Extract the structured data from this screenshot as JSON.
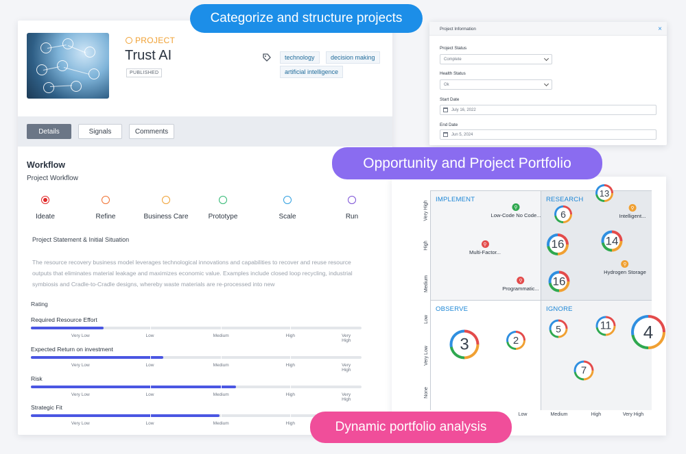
{
  "callouts": {
    "top": "Categorize and structure projects",
    "middle": "Opportunity and Project Portfolio",
    "bottom": "Dynamic portfolio analysis"
  },
  "project": {
    "kind": "PROJECT",
    "title": "Trust AI",
    "status_badge": "PUBLISHED",
    "tags": [
      "technology",
      "decision making",
      "artificial intelligence"
    ]
  },
  "tabs": [
    "Details",
    "Signals",
    "Comments"
  ],
  "workflow": {
    "title": "Workflow",
    "subtitle": "Project Workflow",
    "stages": [
      {
        "label": "Ideate",
        "color": "#e02828",
        "current": true
      },
      {
        "label": "Refine",
        "color": "#f07030",
        "current": false
      },
      {
        "label": "Business Care",
        "color": "#f0a032",
        "current": false
      },
      {
        "label": "Prototype",
        "color": "#2fb872",
        "current": false
      },
      {
        "label": "Scale",
        "color": "#2f9fe0",
        "current": false
      },
      {
        "label": "Run",
        "color": "#7a4fd6",
        "current": false
      }
    ]
  },
  "statement": {
    "heading": "Project Statement & Initial Situation",
    "text": "The resource recovery business model leverages technological innovations and capabilities to recover and reuse resource outputs that eliminates material leakage and maximizes economic value. Examples include closed loop recycling, industrial symbiosis and Cradle-to-Cradle designs, whereby waste materials are re-processed into new"
  },
  "rating": {
    "heading": "Rating",
    "scale_labels": [
      "Very Low",
      "Low",
      "Medium",
      "High",
      "Very High"
    ],
    "items": [
      {
        "name": "Required Resource Effort",
        "fraction": 0.22
      },
      {
        "name": "Expected Return on investment",
        "fraction": 0.4
      },
      {
        "name": "Risk",
        "fraction": 0.62
      },
      {
        "name": "Strategic Fit",
        "fraction": 0.57
      }
    ]
  },
  "project_info": {
    "title": "Project Information",
    "close": "×",
    "status_label": "Project Status",
    "status_value": "Complete",
    "health_label": "Health Status",
    "health_value": "Ok",
    "start_label": "Start Date",
    "start_value": "July 16, 2022",
    "end_label": "End Date",
    "end_value": "Jun 5, 2024"
  },
  "portfolio": {
    "quadrants": [
      "IMPLEMENT",
      "RESEARCH",
      "OBSERVE",
      "IGNORE"
    ],
    "y_labels": [
      "Very High",
      "High",
      "Medium",
      "Low",
      "Very Low",
      "None"
    ],
    "x_labels": [
      "Low",
      "Medium",
      "High",
      "Very High"
    ],
    "opportunities": [
      {
        "label": "Low-Code No Code...",
        "color": "#2fa84f"
      },
      {
        "label": "Intelligent...",
        "color": "#f0a032"
      },
      {
        "label": "Multi-Factor...",
        "color": "#e34b4b"
      },
      {
        "label": "Hydrogen Storage",
        "color": "#f0a032"
      },
      {
        "label": "Programmatic...",
        "color": "#e34b4b"
      }
    ],
    "projects": [
      "13",
      "6",
      "16",
      "14",
      "16",
      "3",
      "2",
      "5",
      "11",
      "4",
      "7"
    ]
  }
}
